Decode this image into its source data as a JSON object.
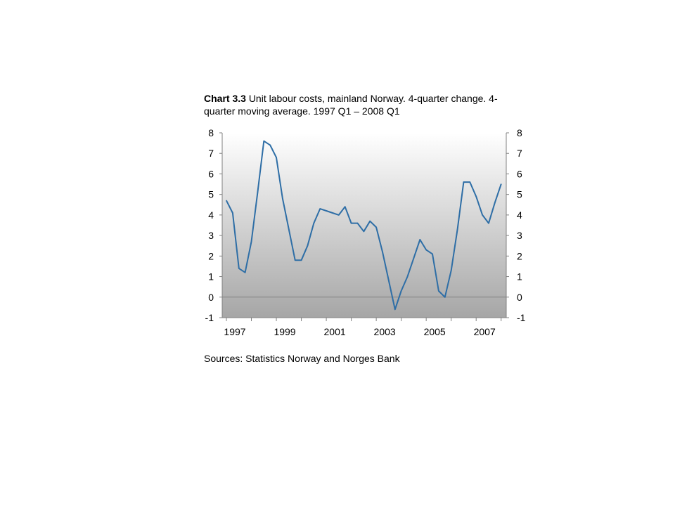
{
  "chart_data": {
    "type": "line",
    "title_label": "Chart 3.3",
    "title_text": "Unit labour costs, mainland Norway. 4-quarter change. 4-quarter moving average. 1997 Q1 – 2008 Q1",
    "source": "Sources: Statistics Norway and Norges Bank",
    "xlabel": "",
    "ylabel": "",
    "ylim": [
      -1,
      8
    ],
    "yticks": [
      8,
      7,
      6,
      5,
      4,
      3,
      2,
      1,
      0,
      -1
    ],
    "y_tick_labels": [
      "8",
      "7",
      "6",
      "5",
      "4",
      "3",
      "2",
      "1",
      "0",
      "-1"
    ],
    "x_tick_labels": [
      "1997",
      "1999",
      "2001",
      "2003",
      "2005",
      "2007"
    ],
    "x_tick_years": [
      1997,
      1999,
      2001,
      2003,
      2005,
      2007
    ],
    "dual_y_axis": true,
    "zero_line": true,
    "background": "vertical gradient white to grey",
    "grid": false,
    "legend": "none",
    "x_start_year": 1997,
    "x_end_year": 2008,
    "series": [
      {
        "color": "#2e6ea6",
        "x": [
          "1997 Q1",
          "1997 Q2",
          "1997 Q3",
          "1997 Q4",
          "1998 Q1",
          "1998 Q2",
          "1998 Q3",
          "1998 Q4",
          "1999 Q1",
          "1999 Q2",
          "1999 Q3",
          "1999 Q4",
          "2000 Q1",
          "2000 Q2",
          "2000 Q3",
          "2000 Q4",
          "2001 Q1",
          "2001 Q2",
          "2001 Q3",
          "2001 Q4",
          "2002 Q1",
          "2002 Q2",
          "2002 Q3",
          "2002 Q4",
          "2003 Q1",
          "2003 Q2",
          "2003 Q3",
          "2003 Q4",
          "2004 Q1",
          "2004 Q2",
          "2004 Q3",
          "2004 Q4",
          "2005 Q1",
          "2005 Q2",
          "2005 Q3",
          "2005 Q4",
          "2006 Q1",
          "2006 Q2",
          "2006 Q3",
          "2006 Q4",
          "2007 Q1",
          "2007 Q2",
          "2007 Q3",
          "2007 Q4",
          "2008 Q1"
        ],
        "values": [
          4.7,
          4.1,
          1.4,
          1.2,
          2.7,
          5.1,
          7.6,
          7.4,
          6.8,
          4.8,
          3.3,
          1.8,
          1.8,
          2.5,
          3.6,
          4.3,
          4.2,
          4.1,
          4.0,
          4.4,
          3.6,
          3.6,
          3.2,
          3.7,
          3.4,
          2.2,
          0.8,
          -0.6,
          0.3,
          1.0,
          1.9,
          2.8,
          2.3,
          2.1,
          0.3,
          0.0,
          1.3,
          3.3,
          5.6,
          5.6,
          4.9,
          4.0,
          3.6,
          4.6,
          5.5
        ]
      }
    ]
  }
}
